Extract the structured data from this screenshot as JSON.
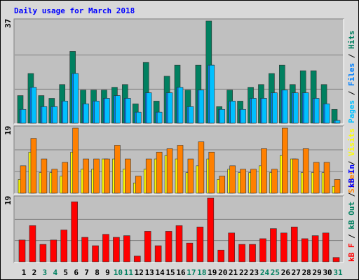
{
  "title": "Daily usage for March 2018",
  "legend_separator": " / ",
  "chart_data": [
    {
      "type": "bar",
      "ylim": [
        0,
        37
      ],
      "series": [
        {
          "name": "Pages",
          "color": "#00c0ff",
          "values": [
            5,
            13,
            6,
            6,
            8,
            18,
            7,
            8,
            9,
            10,
            9,
            4,
            11,
            4,
            11,
            13,
            6,
            12,
            21,
            5,
            8,
            5,
            9,
            9,
            11,
            12,
            11,
            11,
            9,
            7,
            1
          ]
        },
        {
          "name": "Files",
          "color": "#0080ff",
          "values": [
            5,
            13,
            6,
            6,
            8,
            18,
            7,
            8,
            9,
            10,
            9,
            4,
            11,
            4,
            11,
            13,
            6,
            12,
            21,
            5,
            8,
            5,
            9,
            9,
            11,
            12,
            11,
            11,
            9,
            7,
            1
          ]
        },
        {
          "name": "Hits",
          "color": "#008060",
          "values": [
            10,
            18,
            10,
            9,
            14,
            26,
            12,
            12,
            12,
            13,
            14,
            7,
            22,
            8,
            17,
            21,
            12,
            21,
            37,
            6,
            12,
            8,
            13,
            14,
            18,
            21,
            14,
            19,
            19,
            14,
            5
          ]
        }
      ]
    },
    {
      "type": "bar",
      "ylim": [
        0,
        19
      ],
      "series": [
        {
          "name": "Sites",
          "color": "#ff8000",
          "values": [
            8,
            16,
            10,
            7,
            9,
            19,
            10,
            10,
            10,
            14,
            10,
            5,
            10,
            12,
            13,
            14,
            10,
            15,
            12,
            5,
            8,
            7,
            7,
            13,
            7,
            19,
            10,
            13,
            9,
            9,
            4
          ]
        },
        {
          "name": "Visits",
          "color": "#ffff00",
          "values": [
            4,
            12,
            6,
            6,
            5,
            12,
            7,
            7,
            10,
            10,
            7,
            3,
            7,
            10,
            11,
            10,
            6,
            8,
            10,
            4,
            7,
            6,
            6,
            8,
            6,
            11,
            10,
            6,
            6,
            6,
            2
          ]
        }
      ]
    },
    {
      "type": "bar",
      "ylim": [
        0,
        19
      ],
      "categories": [
        "1",
        "2",
        "3",
        "4",
        "5",
        "6",
        "7",
        "8",
        "9",
        "10",
        "11",
        "12",
        "13",
        "14",
        "15",
        "16",
        "17",
        "18",
        "19",
        "20",
        "21",
        "22",
        "23",
        "24",
        "25",
        "26",
        "27",
        "28",
        "29",
        "30",
        "31"
      ],
      "category_colors": [
        "#000000",
        "#000000",
        "#008060",
        "#008060",
        "#000000",
        "#000000",
        "#000000",
        "#000000",
        "#000000",
        "#008060",
        "#008060",
        "#000000",
        "#000000",
        "#000000",
        "#000000",
        "#000000",
        "#008060",
        "#008060",
        "#000000",
        "#000000",
        "#000000",
        "#000000",
        "#000000",
        "#008060",
        "#008060",
        "#000000",
        "#000000",
        "#000000",
        "#000000",
        "#000000",
        "#008060"
      ],
      "series": [
        {
          "name": "kB F",
          "color": "#ff0000",
          "values": [
            6.5,
            10.8,
            5.2,
            6.5,
            9.5,
            17.9,
            7.3,
            4.8,
            8.2,
            7.3,
            7.8,
            1.7,
            9.1,
            4.8,
            9.1,
            10.8,
            5.6,
            10.4,
            19,
            3.5,
            8.6,
            5.2,
            5.2,
            6.9,
            9.9,
            8.6,
            10.4,
            6.9,
            7.8,
            8.6,
            1.3
          ]
        }
      ],
      "legend_extra": [
        {
          "name": "kB Out",
          "color": "#008060"
        },
        {
          "name": "kB In",
          "color": "#0000ff"
        }
      ]
    }
  ]
}
